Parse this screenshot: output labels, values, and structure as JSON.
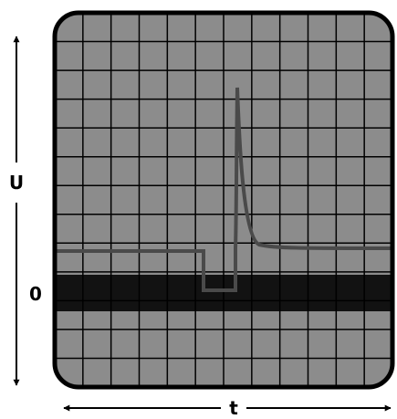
{
  "labels": {
    "voltage_axis": "U",
    "zero_level": "0",
    "time_axis": "t"
  },
  "colors": {
    "screen_background": "#8c8c8c",
    "screen_border": "#000000",
    "grid_line": "#000000",
    "zero_band": "#121212",
    "trace": "#4a4a4a",
    "axis_arrow": "#000000"
  },
  "grid": {
    "columns": 12,
    "rows": 13
  }
}
